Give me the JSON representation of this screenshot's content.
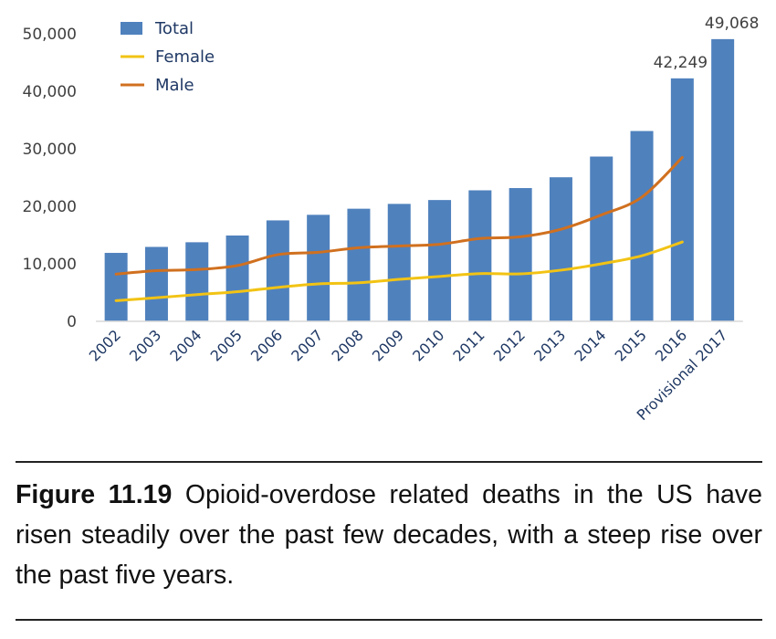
{
  "chart_data": {
    "type": "bar+line",
    "categories": [
      "2002",
      "2003",
      "2004",
      "2005",
      "2006",
      "2007",
      "2008",
      "2009",
      "2010",
      "2011",
      "2012",
      "2013",
      "2014",
      "2015",
      "2016",
      "Provisional 2017"
    ],
    "series": [
      {
        "name": "Total",
        "kind": "bar",
        "color": "#4f81bd",
        "values": [
          11900,
          12940,
          13750,
          14920,
          17550,
          18520,
          19580,
          20420,
          21090,
          22780,
          23170,
          25050,
          28650,
          33090,
          42249,
          49068
        ]
      },
      {
        "name": "Female",
        "kind": "line",
        "color": "#f2c314",
        "values": [
          3600,
          4100,
          4650,
          5150,
          5900,
          6500,
          6700,
          7300,
          7800,
          8300,
          8250,
          8900,
          10000,
          11400,
          13800,
          null
        ]
      },
      {
        "name": "Male",
        "kind": "line",
        "color": "#d0701f",
        "values": [
          8200,
          8800,
          9000,
          9700,
          11600,
          12000,
          12800,
          13100,
          13400,
          14400,
          14700,
          16000,
          18500,
          21600,
          28500,
          null
        ]
      }
    ],
    "data_labels": [
      {
        "category_index": 14,
        "text": "42,249"
      },
      {
        "category_index": 15,
        "text": "49,068"
      }
    ],
    "y_ticks": [
      "0",
      "10,000",
      "20,000",
      "30,000",
      "40,000",
      "50,000"
    ],
    "y_tick_values": [
      0,
      10000,
      20000,
      30000,
      40000,
      50000
    ],
    "ylim": [
      0,
      50000
    ],
    "legend_position": "top-left",
    "grid": false
  },
  "caption": {
    "label": "Figure 11.19",
    "text": "Opioid-overdose related deaths in the US have risen steadily over the past few decades, with a steep rise over the past five years."
  }
}
